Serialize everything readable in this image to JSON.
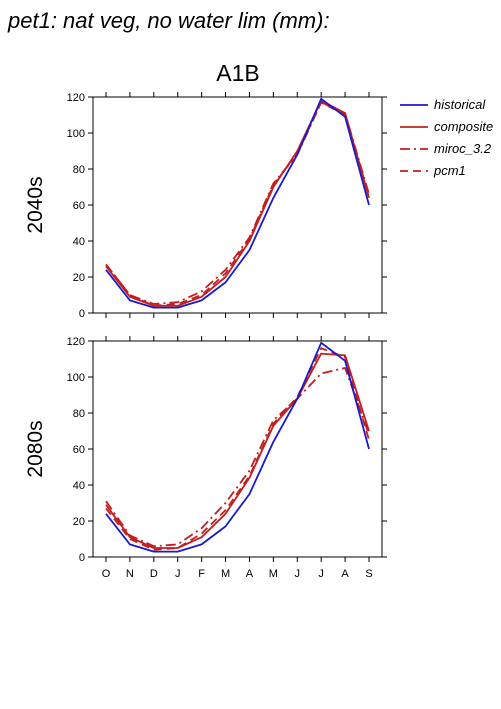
{
  "title": "pet1: nat veg, no water lim (mm):",
  "chart_data": {
    "type": "line",
    "scenario": "A1B",
    "categories": [
      "O",
      "N",
      "D",
      "J",
      "F",
      "M",
      "A",
      "M",
      "J",
      "J",
      "A",
      "S"
    ],
    "ylim": [
      0,
      120
    ],
    "yticks": [
      0,
      20,
      40,
      60,
      80,
      100,
      120
    ],
    "grid": false,
    "legend_position": "right",
    "legend": [
      {
        "name": "historical",
        "color": "#1a1acc",
        "style": "solid"
      },
      {
        "name": "composite",
        "color": "#c41e1e",
        "style": "solid"
      },
      {
        "name": "miroc_3.2",
        "color": "#c41e1e",
        "style": "dashdot"
      },
      {
        "name": "pcm1",
        "color": "#c41e1e",
        "style": "dashed"
      }
    ],
    "panels": [
      {
        "ylabel": "2040s",
        "series": [
          {
            "name": "historical",
            "values": [
              24,
              7,
              3,
              3,
              7,
              17,
              35,
              64,
              88,
              119,
              109,
              60
            ]
          },
          {
            "name": "composite",
            "values": [
              26,
              9,
              4,
              4,
              9,
              20,
              40,
              70,
              90,
              118,
              111,
              64
            ]
          },
          {
            "name": "miroc_3.2",
            "values": [
              27,
              10,
              5,
              6,
              12,
              24,
              42,
              72,
              88,
              117,
              111,
              66
            ]
          },
          {
            "name": "pcm1",
            "values": [
              27,
              10,
              4,
              5,
              10,
              22,
              41,
              71,
              89,
              117,
              110,
              65
            ]
          }
        ]
      },
      {
        "ylabel": "2080s",
        "series": [
          {
            "name": "historical",
            "values": [
              24,
              7,
              3,
              3,
              7,
              17,
              35,
              64,
              88,
              119,
              109,
              60
            ]
          },
          {
            "name": "composite",
            "values": [
              29,
              11,
              5,
              5,
              11,
              24,
              44,
              73,
              88,
              113,
              112,
              70
            ]
          },
          {
            "name": "miroc_3.2",
            "values": [
              31,
              12,
              6,
              7,
              16,
              30,
              48,
              76,
              88,
              102,
              105,
              68
            ]
          },
          {
            "name": "pcm1",
            "values": [
              27,
              10,
              4,
              5,
              13,
              26,
              45,
              74,
              89,
              116,
              111,
              65
            ]
          }
        ]
      }
    ]
  }
}
